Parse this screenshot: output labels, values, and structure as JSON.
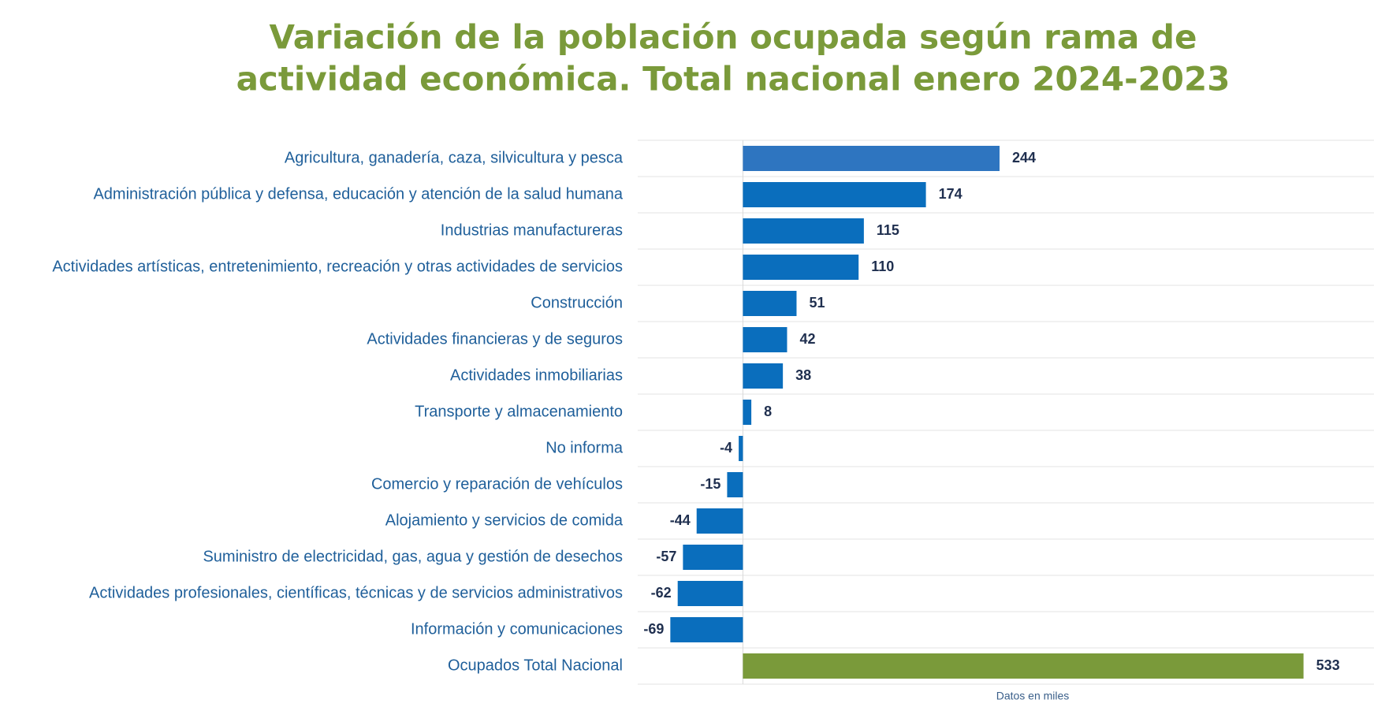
{
  "chart_data": {
    "type": "hbar",
    "title": [
      "Variación de la población ocupada según rama de",
      "actividad económica. Total  nacional enero 2024-2023"
    ],
    "x_label": "Datos en miles",
    "categories": [
      "Agricultura, ganadería, caza, silvicultura y pesca",
      "Administración pública y defensa, educación y atención de la salud humana",
      "Industrias manufactureras",
      "Actividades artísticas, entretenimiento, recreación y otras actividades de servicios",
      "Construcción",
      "Actividades financieras y de seguros",
      "Actividades inmobiliarias",
      "Transporte y almacenamiento",
      "No informa",
      "Comercio y reparación de vehículos",
      "Alojamiento y servicios de comida",
      "Suministro de electricidad, gas, agua y gestión de desechos",
      "Actividades profesionales, científicas, técnicas y de servicios administrativos",
      "Información y comunicaciones",
      "Ocupados Total Nacional"
    ],
    "values": [
      244,
      174,
      115,
      110,
      51,
      42,
      38,
      8,
      -4,
      -15,
      -44,
      -57,
      -62,
      -69,
      533
    ],
    "colors": [
      "#2e75c0",
      "#0a6ebd",
      "#0a6ebd",
      "#0a6ebd",
      "#0a6ebd",
      "#0a6ebd",
      "#0a6ebd",
      "#0a6ebd",
      "#0a6ebd",
      "#0a6ebd",
      "#0a6ebd",
      "#0a6ebd",
      "#0a6ebd",
      "#0a6ebd",
      "#7a9a3a"
    ],
    "xlim": [
      -100,
      600
    ]
  }
}
